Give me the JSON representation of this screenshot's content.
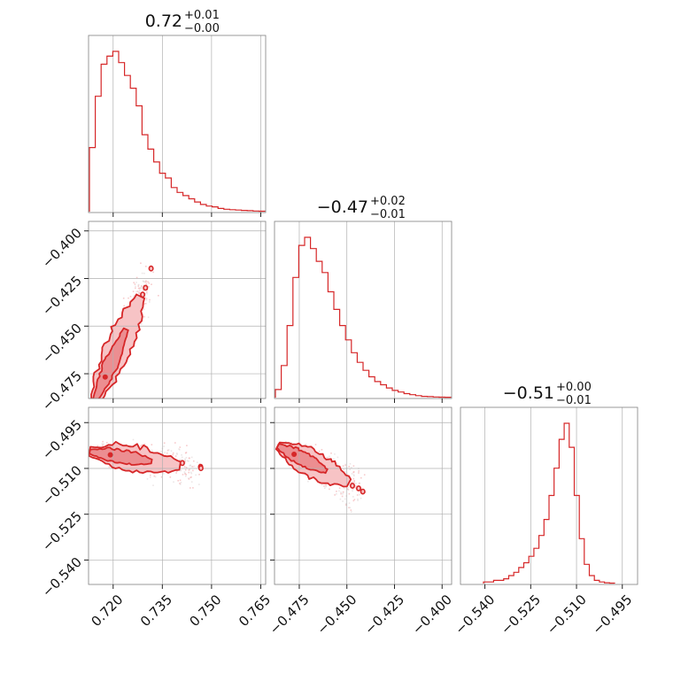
{
  "chart_data": {
    "type": "corner",
    "color": "#d62728",
    "fill_light": "#f7c3c5",
    "fill_mid": "#ec8e91",
    "grid": true,
    "parameters": [
      {
        "title": {
          "value": "0.72",
          "plus": "+0.01",
          "minus": "−0.00"
        },
        "range": [
          0.7125,
          0.7665
        ],
        "ticks": [
          0.72,
          0.735,
          0.75,
          0.765
        ],
        "tick_labels": [
          "0.720",
          "0.735",
          "0.750",
          "0.765"
        ],
        "histogram": [
          0.4,
          0.72,
          0.92,
          0.97,
          1.0,
          0.93,
          0.85,
          0.77,
          0.66,
          0.48,
          0.39,
          0.31,
          0.24,
          0.21,
          0.15,
          0.12,
          0.1,
          0.08,
          0.06,
          0.045,
          0.035,
          0.03,
          0.02,
          0.015,
          0.012,
          0.01,
          0.008,
          0.006,
          0.004,
          0.003
        ]
      },
      {
        "title": {
          "value": "−0.47",
          "plus": "+0.02",
          "minus": "−0.01"
        },
        "range": [
          -0.488,
          -0.395
        ],
        "ticks": [
          -0.475,
          -0.45,
          -0.425,
          -0.4
        ],
        "tick_labels": [
          "−0.475",
          "−0.450",
          "−0.425",
          "−0.400"
        ],
        "histogram": [
          0.05,
          0.2,
          0.45,
          0.75,
          0.95,
          1.0,
          0.93,
          0.85,
          0.78,
          0.66,
          0.55,
          0.45,
          0.36,
          0.28,
          0.22,
          0.17,
          0.13,
          0.1,
          0.08,
          0.06,
          0.045,
          0.035,
          0.025,
          0.018,
          0.012,
          0.008,
          0.006,
          0.004,
          0.003,
          0.002
        ]
      },
      {
        "title": {
          "value": "−0.51",
          "plus": "+0.00",
          "minus": "−0.01"
        },
        "range": [
          -0.548,
          -0.49
        ],
        "ticks": [
          -0.54,
          -0.525,
          -0.51,
          -0.495
        ],
        "tick_labels": [
          "−0.540",
          "−0.525",
          "−0.510",
          "−0.495"
        ],
        "histogram": [
          0.01,
          0.01,
          0.02,
          0.02,
          0.03,
          0.05,
          0.07,
          0.1,
          0.13,
          0.17,
          0.22,
          0.3,
          0.4,
          0.55,
          0.72,
          0.9,
          1.0,
          0.85,
          0.55,
          0.28,
          0.12,
          0.05,
          0.02,
          0.01,
          0.005,
          0.003
        ]
      }
    ]
  }
}
